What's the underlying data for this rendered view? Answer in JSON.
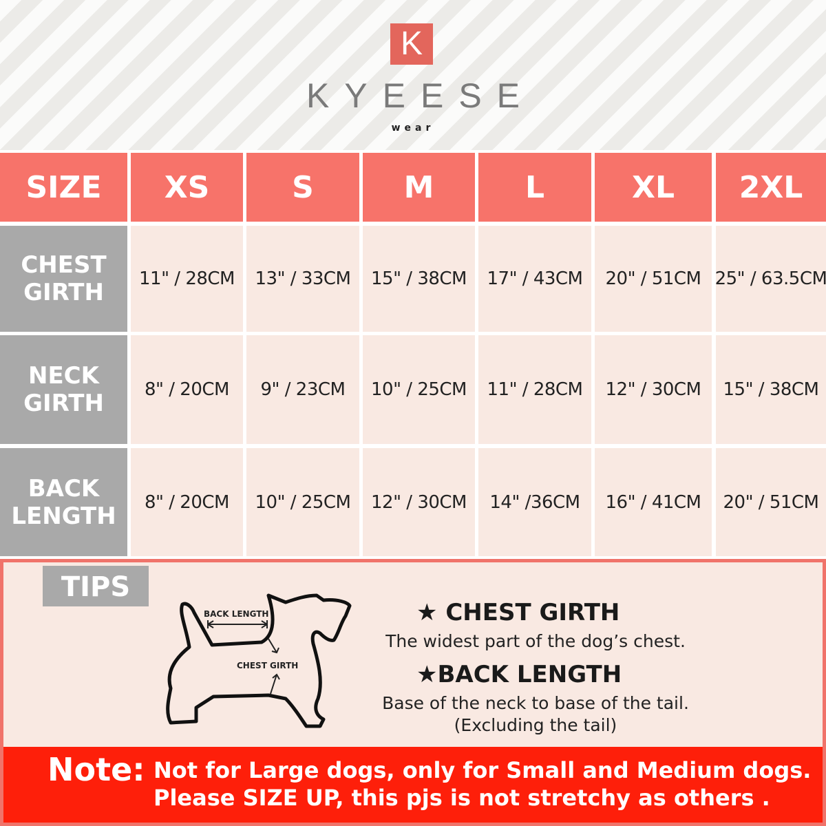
{
  "brand": {
    "logo_letter": "K",
    "name": "KYEESE",
    "tagline": "wear"
  },
  "table": {
    "header_label": "SIZE",
    "sizes": [
      "XS",
      "S",
      "M",
      "L",
      "XL",
      "2XL"
    ],
    "rows": [
      {
        "label_1": "CHEST",
        "label_2": "GIRTH",
        "values": [
          "11\" / 28CM",
          "13\" / 33CM",
          "15\" / 38CM",
          "17\" / 43CM",
          "20\" / 51CM",
          "25\" / 63.5CM"
        ]
      },
      {
        "label_1": "NECK",
        "label_2": "GIRTH",
        "values": [
          "8\" / 20CM",
          "9\" / 23CM",
          "10\" / 25CM",
          "11\" / 28CM",
          "12\" / 30CM",
          "15\" / 38CM"
        ]
      },
      {
        "label_1": "BACK",
        "label_2": "LENGTH",
        "values": [
          "8\" / 20CM",
          "10\" / 25CM",
          "12\" / 30CM",
          "14\" /36CM",
          "16\" / 41CM",
          "20\" / 51CM"
        ]
      }
    ]
  },
  "tips": {
    "label": "TIPS",
    "diagram": {
      "back_length": "BACK LENGTH",
      "chest_girth": "CHEST GIRTH"
    },
    "chest_title": "CHEST GIRTH",
    "chest_desc": "The widest part of the dog’s chest.",
    "back_title": "BACK LENGTH",
    "back_desc": "Base of the neck to base of the tail.",
    "back_note": "(Excluding the tail)"
  },
  "note": {
    "label": "Note:",
    "line1": "Not for Large dogs, only for Small and Medium dogs.",
    "line2": "Please SIZE UP, this pjs is not stretchy as others ."
  },
  "colors": {
    "header": "#f7736a",
    "label_col": "#a9a9a9",
    "cell": "#f9e9e2",
    "note_bar": "#fe1f0a"
  }
}
